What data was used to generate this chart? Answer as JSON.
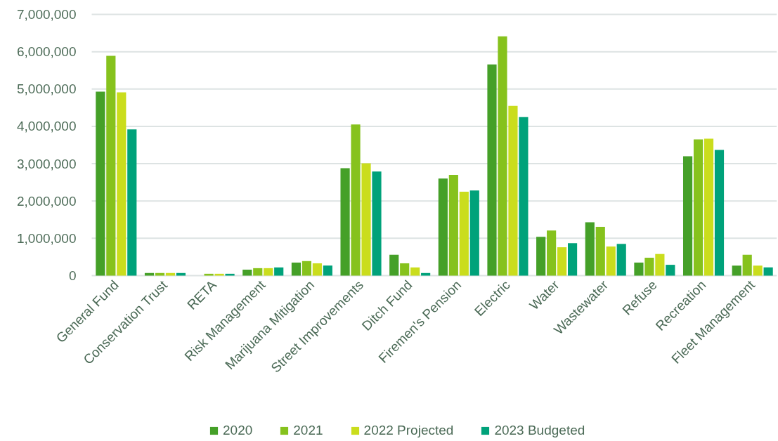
{
  "chart_data": {
    "type": "bar",
    "categories": [
      "General Fund",
      "Conservation Trust",
      "RETA",
      "Risk Management",
      "Marijuana Mitigation",
      "Street Improvements",
      "Ditch Fund",
      "Firemen's Pension",
      "Electric",
      "Water",
      "Wastewater",
      "Refuse",
      "Recreation",
      "Fleet Management"
    ],
    "series": [
      {
        "name": "2020",
        "color": "#45a028",
        "values": [
          4930000,
          70000,
          0,
          160000,
          350000,
          2880000,
          560000,
          2600000,
          5660000,
          1040000,
          1430000,
          350000,
          3200000,
          270000
        ]
      },
      {
        "name": "2021",
        "color": "#86c21d",
        "values": [
          5890000,
          70000,
          50000,
          200000,
          390000,
          4050000,
          330000,
          2700000,
          6410000,
          1210000,
          1310000,
          480000,
          3650000,
          560000
        ]
      },
      {
        "name": "2022 Projected",
        "color": "#cadd1d",
        "values": [
          4910000,
          70000,
          50000,
          200000,
          330000,
          3010000,
          220000,
          2250000,
          4550000,
          760000,
          780000,
          580000,
          3670000,
          270000
        ]
      },
      {
        "name": "2023 Budgeted",
        "color": "#00a27a",
        "values": [
          3920000,
          70000,
          50000,
          220000,
          270000,
          2790000,
          70000,
          2280000,
          4250000,
          870000,
          850000,
          290000,
          3370000,
          220000
        ]
      }
    ],
    "ylim": [
      0,
      7000000
    ],
    "yticks": [
      {
        "value": 0,
        "label": "0"
      },
      {
        "value": 1000000,
        "label": "1,000,000"
      },
      {
        "value": 2000000,
        "label": "2,000,000"
      },
      {
        "value": 3000000,
        "label": "3,000,000"
      },
      {
        "value": 4000000,
        "label": "4,000,000"
      },
      {
        "value": 5000000,
        "label": "5,000,000"
      },
      {
        "value": 6000000,
        "label": "6,000,000"
      },
      {
        "value": 7000000,
        "label": "7,000,000"
      }
    ],
    "grid": "y",
    "legend": "bottom"
  }
}
